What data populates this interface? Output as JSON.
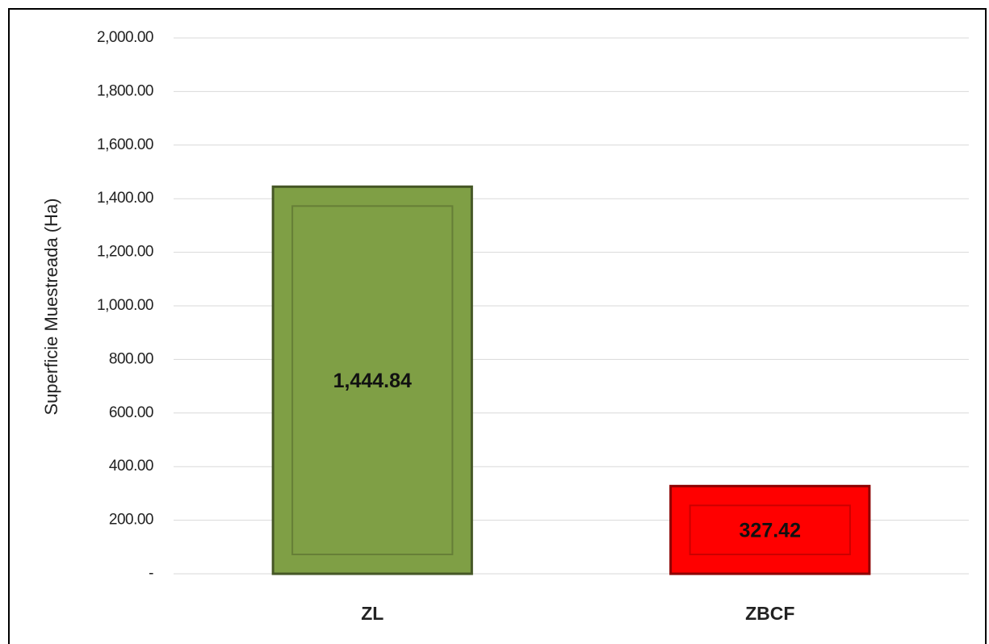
{
  "chart_data": {
    "type": "bar",
    "y_label": "Superficie Muestreada (Ha)",
    "categories": [
      "ZL",
      "ZBCF"
    ],
    "values": [
      1444.84,
      327.42
    ],
    "value_labels": [
      "1,444.84",
      "327.42"
    ],
    "colors": [
      "#7f9f45",
      "#ff0000"
    ],
    "ylim": [
      0,
      2000
    ],
    "yticks": [
      {
        "value": 0,
        "label": "-"
      },
      {
        "value": 200,
        "label": "200.00"
      },
      {
        "value": 400,
        "label": "400.00"
      },
      {
        "value": 600,
        "label": "600.00"
      },
      {
        "value": 800,
        "label": "800.00"
      },
      {
        "value": 1000,
        "label": "1,000.00"
      },
      {
        "value": 1200,
        "label": "1,200.00"
      },
      {
        "value": 1400,
        "label": "1,400.00"
      },
      {
        "value": 1600,
        "label": "1,600.00"
      },
      {
        "value": 1800,
        "label": "1,800.00"
      },
      {
        "value": 2000,
        "label": "2,000.00"
      }
    ],
    "grid": true
  }
}
